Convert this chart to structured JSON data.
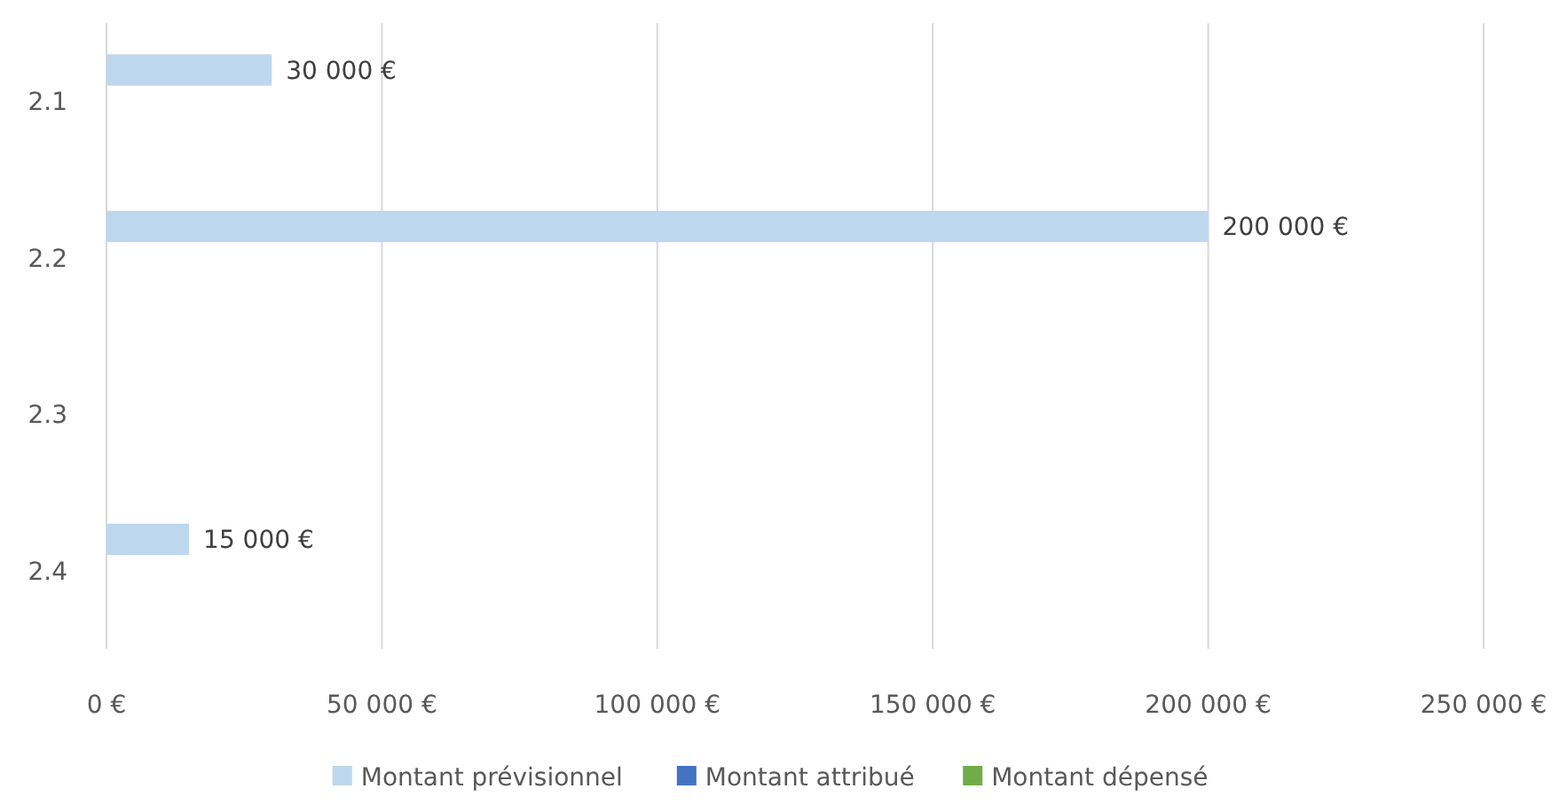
{
  "chart_data": {
    "type": "bar",
    "orientation": "horizontal",
    "categories": [
      "2.1",
      "2.2",
      "2.3",
      "2.4"
    ],
    "series": [
      {
        "name": "Montant prévisionnel",
        "color": "#bdd7ee",
        "values": [
          30000,
          200000,
          null,
          15000
        ],
        "value_labels": [
          "30 000 €",
          "200 000 €",
          null,
          "15 000 €"
        ]
      },
      {
        "name": "Montant attribué",
        "color": "#4472c4",
        "values": [
          null,
          null,
          null,
          null
        ]
      },
      {
        "name": "Montant dépensé",
        "color": "#70ad47",
        "values": [
          null,
          null,
          null,
          null
        ]
      }
    ],
    "xlim": [
      0,
      250000
    ],
    "xticks": [
      {
        "value": 0,
        "label": "0 €"
      },
      {
        "value": 50000,
        "label": "50 000 €"
      },
      {
        "value": 100000,
        "label": "100 000 €"
      },
      {
        "value": 150000,
        "label": "150 000 €"
      },
      {
        "value": 200000,
        "label": "200 000 €"
      },
      {
        "value": 250000,
        "label": "250 000 €"
      }
    ],
    "grid": "x",
    "legend": "bottom"
  }
}
